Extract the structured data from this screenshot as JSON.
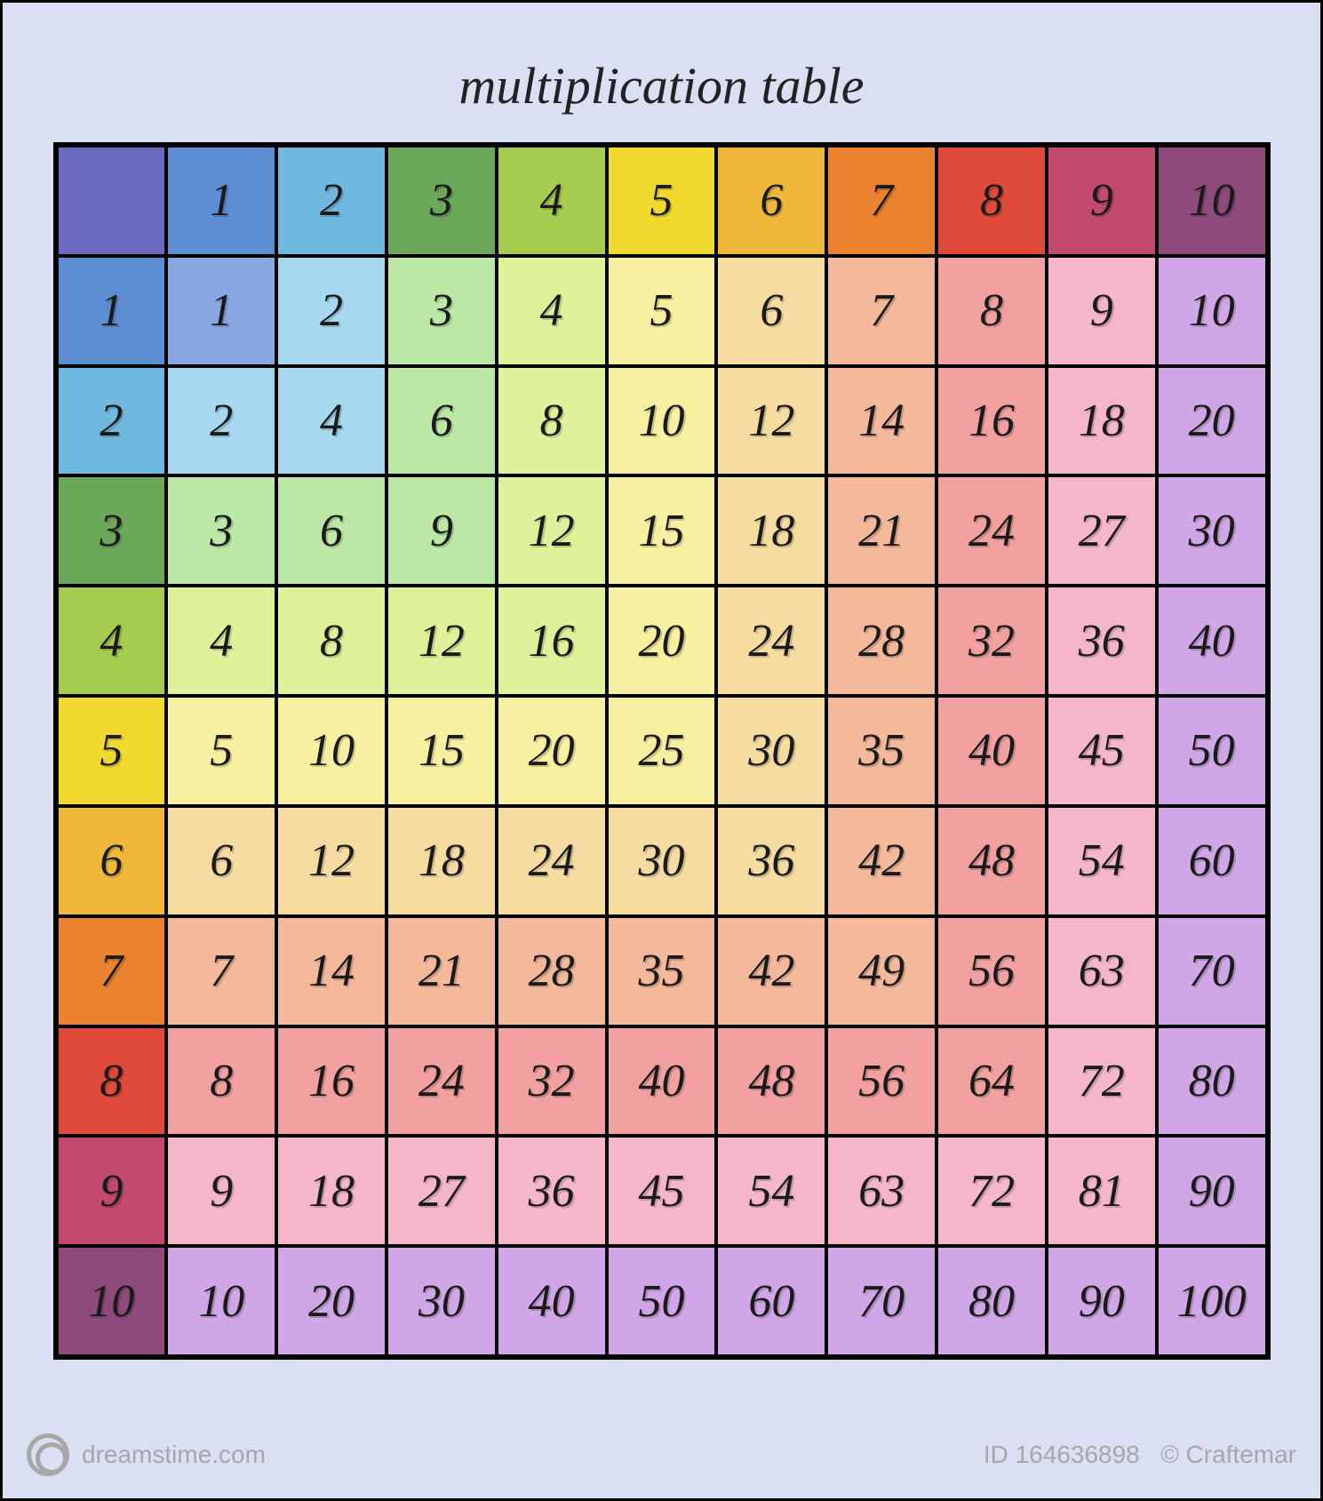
{
  "title": "multiplication table",
  "title_fontsize": 58,
  "cell_fontsize": 52,
  "background_color": "#dadff4",
  "border_color": "#000000",
  "text_color": "#1a1a1a",
  "grid_size": 11,
  "header_colors": [
    "#6b6bc0",
    "#5d8ed1",
    "#6fb8e0",
    "#6ba85a",
    "#a6cc4f",
    "#f2d92f",
    "#f0b83a",
    "#ea8230",
    "#e04a3a",
    "#c24a6f",
    "#8e4a7a"
  ],
  "body_colors": [
    "#8aa6e0",
    "#a6d8f0",
    "#bce8a6",
    "#dff29a",
    "#f7f0a0",
    "#f6dca0",
    "#f4b89a",
    "#f2a0a0",
    "#f4b6c8",
    "#d0a6e6"
  ],
  "rows": [
    [
      "",
      "1",
      "2",
      "3",
      "4",
      "5",
      "6",
      "7",
      "8",
      "9",
      "10"
    ],
    [
      "1",
      "1",
      "2",
      "3",
      "4",
      "5",
      "6",
      "7",
      "8",
      "9",
      "10"
    ],
    [
      "2",
      "2",
      "4",
      "6",
      "8",
      "10",
      "12",
      "14",
      "16",
      "18",
      "20"
    ],
    [
      "3",
      "3",
      "6",
      "9",
      "12",
      "15",
      "18",
      "21",
      "24",
      "27",
      "30"
    ],
    [
      "4",
      "4",
      "8",
      "12",
      "16",
      "20",
      "24",
      "28",
      "32",
      "36",
      "40"
    ],
    [
      "5",
      "5",
      "10",
      "15",
      "20",
      "25",
      "30",
      "35",
      "40",
      "45",
      "50"
    ],
    [
      "6",
      "6",
      "12",
      "18",
      "24",
      "30",
      "36",
      "42",
      "48",
      "54",
      "60"
    ],
    [
      "7",
      "7",
      "14",
      "21",
      "28",
      "35",
      "42",
      "49",
      "56",
      "63",
      "70"
    ],
    [
      "8",
      "8",
      "16",
      "24",
      "32",
      "40",
      "48",
      "56",
      "64",
      "72",
      "80"
    ],
    [
      "9",
      "9",
      "18",
      "27",
      "36",
      "45",
      "54",
      "63",
      "72",
      "81",
      "90"
    ],
    [
      "10",
      "10",
      "20",
      "30",
      "40",
      "50",
      "60",
      "70",
      "80",
      "90",
      "100"
    ]
  ],
  "footer": {
    "site": "dreamstime.com",
    "id_label": "ID 164636898",
    "author_prefix": "©",
    "author": "Craftemar"
  }
}
